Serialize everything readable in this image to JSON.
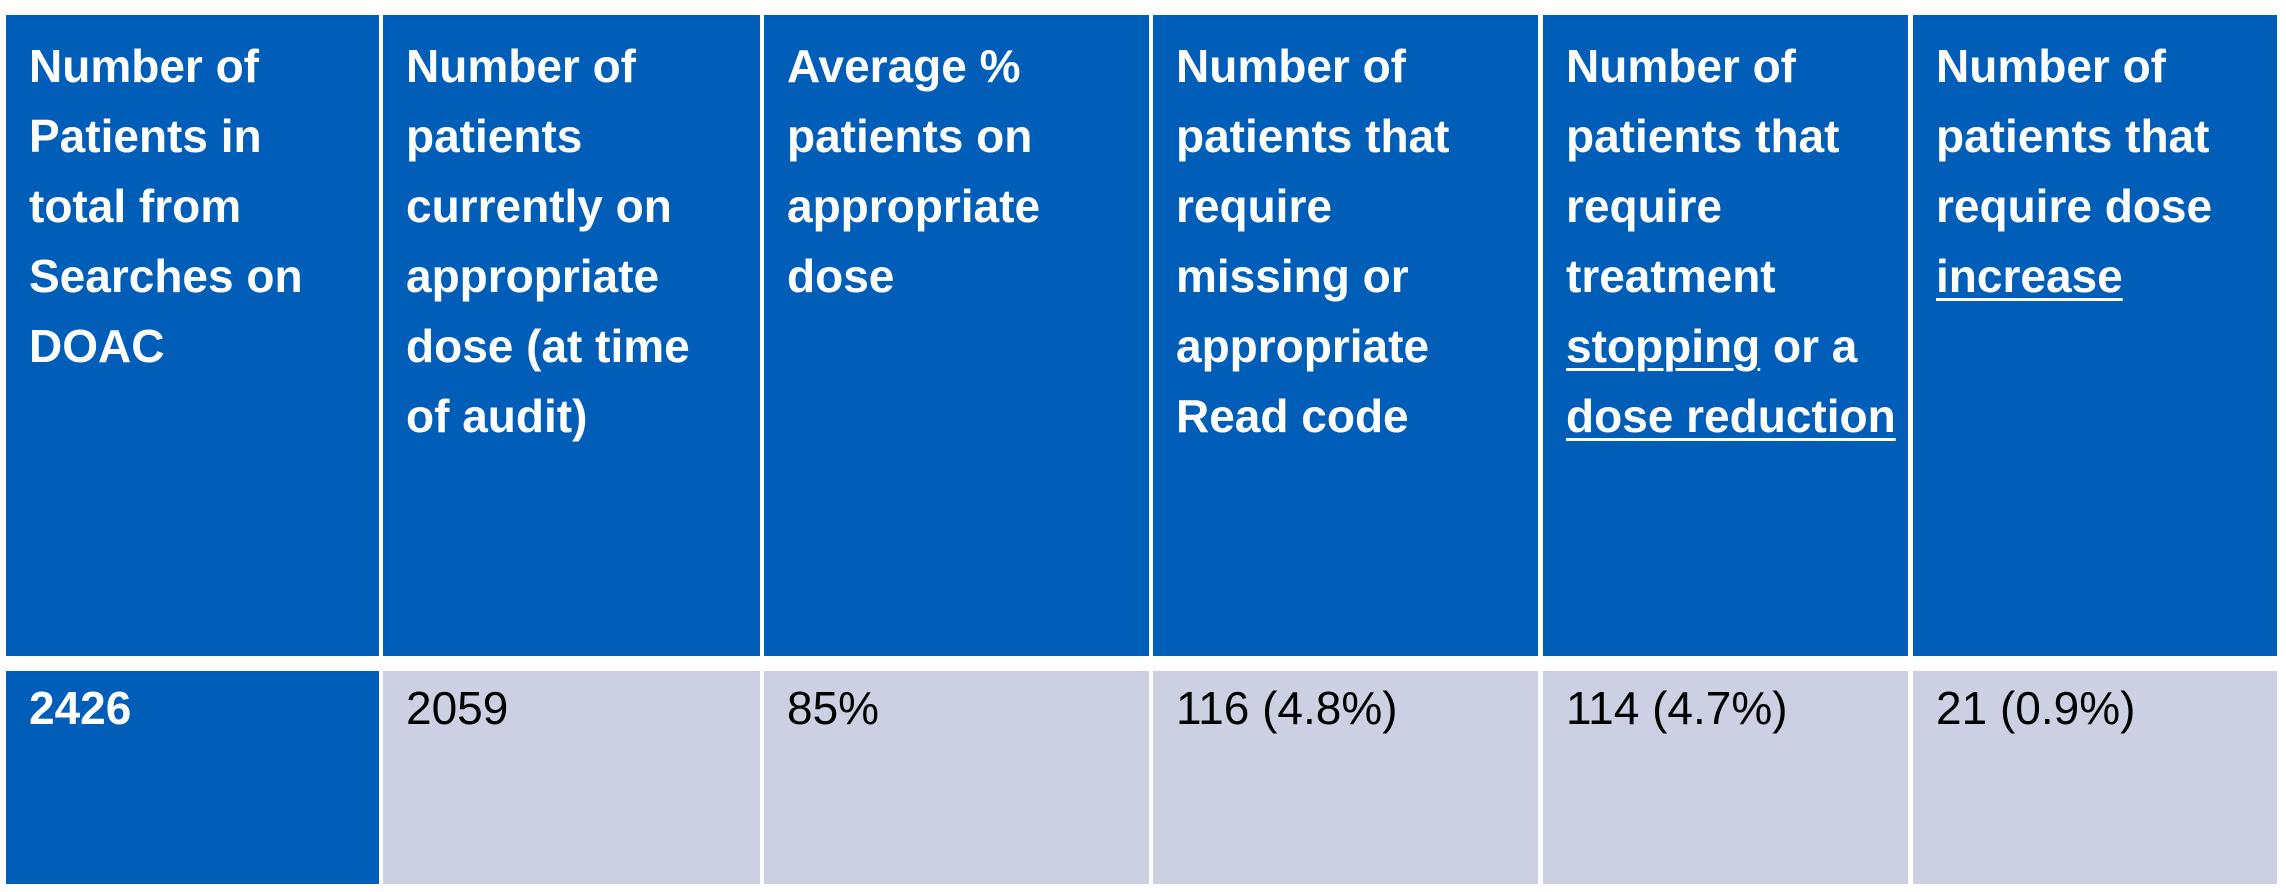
{
  "table": {
    "headers": [
      [
        "Number of Patients in total from Searches on DOAC"
      ],
      [
        "Number of patients currently on appropriate dose (at time of audit)"
      ],
      [
        "Average % patients on appropriate dose"
      ],
      [
        "Number of patients that require missing or appropriate Read code"
      ],
      [
        "Number of patients that require treatment ",
        "stopping",
        " or a ",
        "dose reduction"
      ],
      [
        "Number of patients that require dose ",
        "increase"
      ]
    ],
    "rows": [
      [
        "2426",
        "2059",
        "85%",
        "116 (4.8%)",
        "114 (4.7%)",
        "21 (0.9%)"
      ]
    ]
  }
}
